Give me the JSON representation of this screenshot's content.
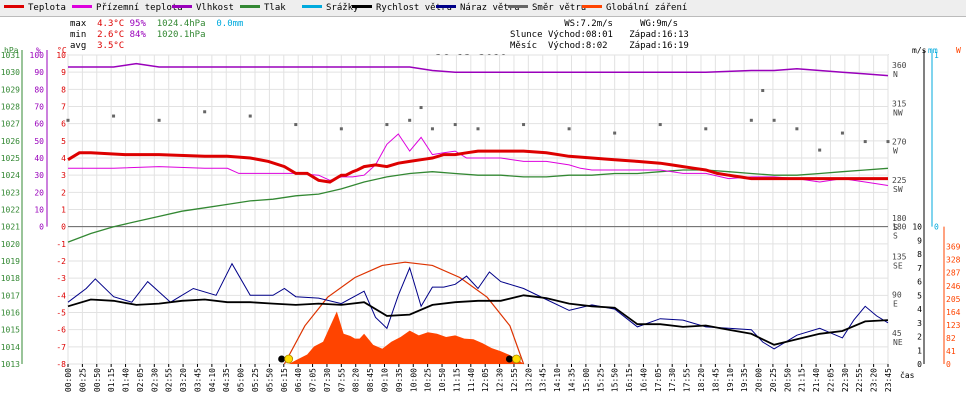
{
  "legend": [
    {
      "label": "Teplota",
      "color": "#dd0000"
    },
    {
      "label": "Přízemní teplota",
      "color": "#dd00dd"
    },
    {
      "label": "Vlhkost",
      "color": "#9900bb"
    },
    {
      "label": "Tlak",
      "color": "#338833"
    },
    {
      "label": "Srážky",
      "color": "#00aadd"
    },
    {
      "label": "Rychlost větru",
      "color": "#000000"
    },
    {
      "label": "Náraz větru",
      "color": "#000088"
    },
    {
      "label": "Směr větru",
      "color": "#666666"
    },
    {
      "label": "Globální záření",
      "color": "#ff4400"
    }
  ],
  "stats": {
    "max_label": "max",
    "max_temp": "4.3°C",
    "max_hum": "95%",
    "max_press": "1024.4hPa",
    "max_rain": "0.0mm",
    "min_label": "min",
    "min_temp": "2.6°C",
    "min_hum": "84%",
    "min_press": "1020.1hPa",
    "avg_label": "avg",
    "avg_temp": "3.5°C"
  },
  "sun": {
    "ws": "WS:7.2m/s",
    "wg": "WG:9m/s",
    "sun_label": "Slunce",
    "sun_rise": "Východ:08:01",
    "sun_set": "Západ:16:13",
    "moon_label": "Měsíc",
    "moon_rise": "Východ:8:02",
    "moon_set": "Západ:16:19"
  },
  "date": "26.12.2019",
  "axis_units": {
    "press": "hPa",
    "hum": "%",
    "temp": "°C",
    "wind": "m/s",
    "rain": "mm",
    "rad": "W",
    "time": "čas"
  },
  "colors": {
    "temp": "#dd0000",
    "ground": "#dd00dd",
    "hum": "#9900bb",
    "press": "#338833",
    "rain": "#00aadd",
    "speed": "#000000",
    "gust": "#000088",
    "dir": "#666666",
    "rad": "#ff4400",
    "rad_max": "#dd3300"
  },
  "chart_data": {
    "type": "line",
    "title": "26.12.2019",
    "x_ticks": [
      "00:00",
      "00:25",
      "00:50",
      "01:15",
      "01:40",
      "02:05",
      "02:30",
      "02:55",
      "03:20",
      "03:45",
      "04:10",
      "04:35",
      "05:00",
      "05:25",
      "05:50",
      "06:15",
      "06:40",
      "07:05",
      "07:30",
      "07:55",
      "08:20",
      "08:45",
      "09:10",
      "09:35",
      "10:00",
      "10:25",
      "10:50",
      "11:15",
      "11:40",
      "12:05",
      "12:30",
      "12:55",
      "13:20",
      "13:45",
      "14:10",
      "14:35",
      "15:00",
      "15:25",
      "15:50",
      "16:15",
      "16:40",
      "17:05",
      "17:30",
      "17:55",
      "18:20",
      "18:45",
      "19:10",
      "19:35",
      "20:00",
      "20:25",
      "20:50",
      "21:15",
      "21:40",
      "22:05",
      "22:30",
      "22:55",
      "23:20",
      "23:45"
    ],
    "left_axes": {
      "press": [
        "1031",
        "1030",
        "1029",
        "1028",
        "1027",
        "1026",
        "1025",
        "1024",
        "1023",
        "1022",
        "1021",
        "1020",
        "1019",
        "1018",
        "1017",
        "1016",
        "1015",
        "1014",
        "1013"
      ],
      "hum": [
        "100",
        "90",
        "80",
        "70",
        "60",
        "50",
        "40",
        "30",
        "20",
        "10",
        "0"
      ],
      "temp": [
        "10",
        "9",
        "8",
        "7",
        "6",
        "5",
        "4",
        "3",
        "2",
        "1",
        "0",
        "-1",
        "-2",
        "-3",
        "-4",
        "-5",
        "-6",
        "-7",
        "-8"
      ]
    },
    "right_axes": {
      "dir": [
        [
          "360",
          "N"
        ],
        [
          "315",
          "NW"
        ],
        [
          "270",
          "W"
        ],
        [
          "225",
          "SW"
        ],
        [
          "180",
          "S"
        ],
        [
          "135",
          "SE"
        ],
        [
          "90",
          "E"
        ],
        [
          "45",
          "NE"
        ]
      ],
      "wind": [
        "10",
        "9",
        "8",
        "7",
        "6",
        "5",
        "4",
        "3",
        "2",
        "1",
        "0"
      ],
      "rain": [
        "1",
        "0"
      ],
      "rad": [
        "369",
        "328",
        "287",
        "246",
        "205",
        "164",
        "123",
        "82",
        "41",
        "0"
      ]
    },
    "series": [
      {
        "key": "temp",
        "name": "Teplota",
        "unit": "°C",
        "x": [
          0,
          5,
          10,
          25,
          40,
          60,
          70,
          80,
          88,
          95,
          100,
          105,
          110,
          115,
          120,
          122,
          125,
          127,
          130,
          135,
          140,
          145,
          150,
          155,
          160,
          165,
          170,
          175,
          180,
          185,
          190,
          200,
          210,
          220,
          230,
          240,
          250,
          260,
          265,
          270,
          275,
          280,
          285,
          290,
          295,
          300,
          310,
          320,
          330,
          340,
          350,
          360
        ],
        "y": [
          3.9,
          4.3,
          4.3,
          4.2,
          4.2,
          4.1,
          4.1,
          4.0,
          3.8,
          3.5,
          3.1,
          3.1,
          2.7,
          2.6,
          3.0,
          3.0,
          3.2,
          3.3,
          3.5,
          3.6,
          3.5,
          3.7,
          3.8,
          3.9,
          4.0,
          4.2,
          4.2,
          4.3,
          4.4,
          4.4,
          4.4,
          4.4,
          4.3,
          4.1,
          4.0,
          3.9,
          3.8,
          3.7,
          3.6,
          3.5,
          3.4,
          3.3,
          3.1,
          3.0,
          2.9,
          2.8,
          2.8,
          2.8,
          2.8,
          2.8,
          2.8,
          2.8
        ]
      },
      {
        "key": "ground",
        "name": "Přízemní teplota",
        "unit": "°C",
        "x": [
          0,
          20,
          40,
          60,
          70,
          75,
          80,
          90,
          100,
          110,
          115,
          120,
          125,
          130,
          135,
          140,
          145,
          150,
          155,
          160,
          165,
          170,
          175,
          180,
          190,
          200,
          210,
          220,
          225,
          230,
          240,
          250,
          260,
          270,
          275,
          280,
          290,
          300,
          310,
          320,
          330,
          340,
          350,
          360
        ],
        "y": [
          3.4,
          3.4,
          3.5,
          3.4,
          3.4,
          3.1,
          3.1,
          3.1,
          3.1,
          3.0,
          2.7,
          2.9,
          2.9,
          3.0,
          3.6,
          4.8,
          5.4,
          4.4,
          5.2,
          4.2,
          4.3,
          4.4,
          4.0,
          4.0,
          4.0,
          3.8,
          3.8,
          3.6,
          3.4,
          3.3,
          3.3,
          3.3,
          3.3,
          3.1,
          3.1,
          3.1,
          2.8,
          2.9,
          2.9,
          2.8,
          2.6,
          2.8,
          2.6,
          2.4
        ]
      },
      {
        "key": "hum",
        "name": "Vlhkost",
        "unit": "%",
        "x": [
          0,
          20,
          30,
          40,
          55,
          70,
          80,
          100,
          120,
          150,
          160,
          170,
          180,
          200,
          220,
          240,
          260,
          280,
          300,
          310,
          320,
          330,
          340,
          350,
          360
        ],
        "y": [
          93,
          93,
          95,
          93,
          93,
          93,
          93,
          93,
          93,
          93,
          91,
          90,
          90,
          90,
          90,
          90,
          90,
          90,
          91,
          91,
          92,
          91,
          90,
          89,
          88
        ]
      },
      {
        "key": "press",
        "name": "Tlak",
        "unit": "hPa",
        "x": [
          0,
          10,
          20,
          30,
          40,
          50,
          60,
          70,
          80,
          90,
          100,
          110,
          120,
          130,
          140,
          150,
          160,
          170,
          180,
          190,
          200,
          210,
          220,
          230,
          240,
          250,
          260,
          270,
          280,
          290,
          300,
          310,
          320,
          330,
          340,
          350,
          360
        ],
        "y": [
          1020.1,
          1020.6,
          1021.0,
          1021.3,
          1021.6,
          1021.9,
          1022.1,
          1022.3,
          1022.5,
          1022.6,
          1022.8,
          1022.9,
          1023.2,
          1023.6,
          1023.9,
          1024.1,
          1024.2,
          1024.1,
          1024.0,
          1024.0,
          1023.9,
          1023.9,
          1024.0,
          1024.0,
          1024.1,
          1024.1,
          1024.2,
          1024.3,
          1024.3,
          1024.2,
          1024.1,
          1024.0,
          1024.0,
          1024.1,
          1024.2,
          1024.3,
          1024.4
        ]
      },
      {
        "key": "speed",
        "name": "Rychlost větru",
        "unit": "m/s",
        "x": [
          0,
          10,
          20,
          30,
          40,
          50,
          60,
          70,
          80,
          90,
          100,
          110,
          120,
          130,
          140,
          150,
          160,
          170,
          180,
          190,
          200,
          210,
          220,
          230,
          240,
          250,
          260,
          270,
          280,
          290,
          300,
          310,
          320,
          330,
          340,
          350,
          360
        ],
        "y": [
          4.2,
          4.7,
          4.6,
          4.3,
          4.4,
          4.6,
          4.7,
          4.5,
          4.5,
          4.4,
          4.3,
          4.4,
          4.3,
          4.5,
          3.5,
          3.6,
          4.3,
          4.5,
          4.6,
          4.6,
          5.0,
          4.8,
          4.4,
          4.2,
          4.1,
          2.9,
          2.9,
          2.7,
          2.8,
          2.5,
          2.2,
          1.4,
          1.8,
          2.2,
          2.4,
          3.1,
          3.2
        ]
      },
      {
        "key": "gust",
        "name": "Náraz větru",
        "unit": "m/s",
        "x": [
          0,
          8,
          12,
          20,
          28,
          35,
          45,
          55,
          65,
          72,
          80,
          90,
          95,
          100,
          110,
          120,
          130,
          135,
          140,
          145,
          150,
          155,
          160,
          165,
          170,
          175,
          180,
          185,
          190,
          200,
          210,
          220,
          230,
          240,
          250,
          260,
          270,
          280,
          290,
          300,
          305,
          310,
          320,
          330,
          340,
          345,
          350,
          355,
          360
        ],
        "y": [
          4.5,
          5.5,
          6.2,
          4.9,
          4.5,
          6.0,
          4.5,
          5.5,
          5.0,
          7.3,
          5.0,
          5.0,
          5.5,
          4.9,
          4.8,
          4.4,
          5.3,
          3.4,
          2.6,
          5.0,
          7.0,
          4.2,
          5.6,
          5.6,
          5.8,
          6.4,
          5.5,
          6.7,
          6.0,
          5.5,
          4.7,
          3.9,
          4.3,
          4.0,
          2.7,
          3.3,
          3.2,
          2.7,
          2.6,
          2.5,
          1.6,
          1.1,
          2.1,
          2.6,
          1.9,
          3.2,
          4.2,
          3.5,
          3.0
        ]
      },
      {
        "key": "dir",
        "name": "Směr větru",
        "unit": "°",
        "x": [
          0,
          20,
          40,
          60,
          80,
          100,
          120,
          140,
          150,
          155,
          160,
          170,
          180,
          200,
          220,
          240,
          260,
          280,
          300,
          305,
          310,
          320,
          330,
          340,
          350,
          360
        ],
        "y": [
          295,
          300,
          295,
          305,
          300,
          290,
          285,
          290,
          295,
          310,
          285,
          290,
          285,
          290,
          285,
          280,
          290,
          285,
          295,
          330,
          295,
          285,
          260,
          280,
          270,
          270
        ]
      },
      {
        "key": "rad",
        "name": "Globální záření",
        "unit": "W/m²",
        "x": [
          97,
          100,
          105,
          108,
          112,
          118,
          121,
          124,
          126,
          128,
          130,
          134,
          138,
          142,
          146,
          150,
          154,
          158,
          162,
          166,
          170,
          174,
          178,
          182,
          186,
          190,
          194,
          198,
          200
        ],
        "y": [
          0,
          12,
          30,
          55,
          70,
          165,
          95,
          88,
          80,
          80,
          95,
          60,
          48,
          70,
          85,
          105,
          90,
          100,
          95,
          85,
          90,
          80,
          78,
          65,
          50,
          40,
          28,
          12,
          0
        ]
      },
      {
        "key": "rad_max",
        "name": "Globální záření max",
        "unit": "W/m²",
        "x": [
          95,
          104,
          114,
          126,
          138,
          148,
          160,
          172,
          184,
          194,
          200
        ],
        "y": [
          0,
          120,
          210,
          272,
          310,
          320,
          310,
          272,
          210,
          120,
          0
        ]
      }
    ],
    "sunrise_x": 96,
    "sunset_x": 196,
    "grid": true
  }
}
